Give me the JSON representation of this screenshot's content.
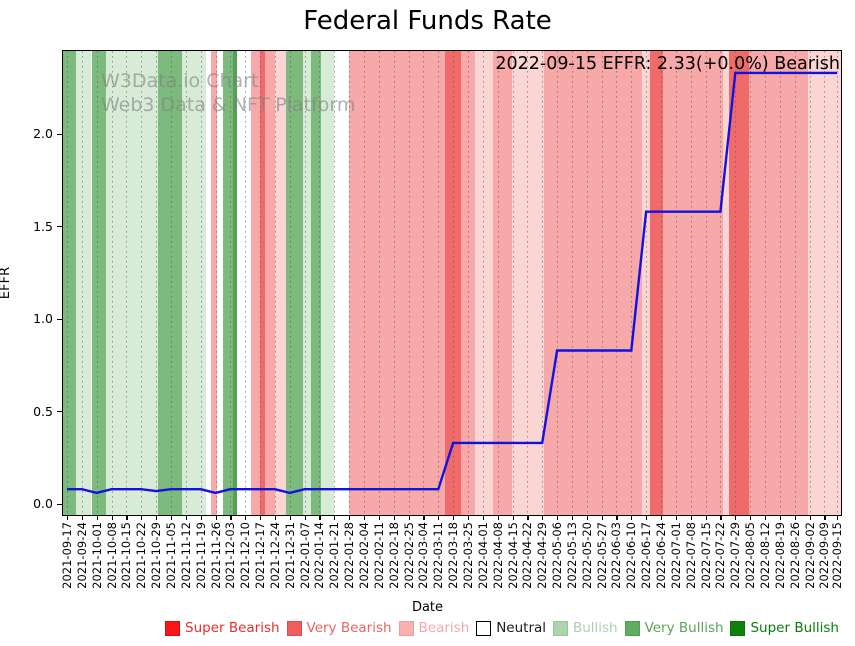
{
  "title": "Federal Funds Rate",
  "watermark": {
    "line1": "W3Data.io Chart",
    "line2": "Web3 Data & NFT Platform"
  },
  "annotation": "2022-09-15 EFFR: 2.33(+0.0%) Bearish",
  "axes": {
    "xlabel": "Date",
    "ylabel": "EFFR",
    "yticks": [
      "0.0",
      "0.5",
      "1.0",
      "1.5",
      "2.0"
    ],
    "ytick_values": [
      0.0,
      0.5,
      1.0,
      1.5,
      2.0
    ]
  },
  "chart_data": {
    "type": "line",
    "title": "Federal Funds Rate",
    "xlabel": "Date",
    "ylabel": "EFFR",
    "ylim": [
      -0.05,
      2.45
    ],
    "grid": "vertical-dotted",
    "legend_position": "bottom",
    "x": [
      "2021-09-17",
      "2021-09-24",
      "2021-10-01",
      "2021-10-08",
      "2021-10-15",
      "2021-10-22",
      "2021-10-29",
      "2021-11-05",
      "2021-11-12",
      "2021-11-19",
      "2021-11-26",
      "2021-12-03",
      "2021-12-10",
      "2021-12-17",
      "2021-12-24",
      "2021-12-31",
      "2022-01-07",
      "2022-01-14",
      "2022-01-21",
      "2022-01-28",
      "2022-02-04",
      "2022-02-11",
      "2022-02-18",
      "2022-02-25",
      "2022-03-04",
      "2022-03-11",
      "2022-03-18",
      "2022-03-25",
      "2022-04-01",
      "2022-04-08",
      "2022-04-15",
      "2022-04-22",
      "2022-04-29",
      "2022-05-06",
      "2022-05-13",
      "2022-05-20",
      "2022-05-27",
      "2022-06-03",
      "2022-06-10",
      "2022-06-17",
      "2022-06-24",
      "2022-07-01",
      "2022-07-08",
      "2022-07-15",
      "2022-07-22",
      "2022-07-29",
      "2022-08-05",
      "2022-08-12",
      "2022-08-19",
      "2022-08-26",
      "2022-09-02",
      "2022-09-09",
      "2022-09-15"
    ],
    "series": [
      {
        "name": "EFFR",
        "color": "#1212e0",
        "values": [
          0.08,
          0.08,
          0.06,
          0.08,
          0.08,
          0.08,
          0.07,
          0.08,
          0.08,
          0.08,
          0.06,
          0.08,
          0.08,
          0.08,
          0.08,
          0.06,
          0.08,
          0.08,
          0.08,
          0.08,
          0.08,
          0.08,
          0.08,
          0.08,
          0.08,
          0.08,
          0.33,
          0.33,
          0.33,
          0.33,
          0.33,
          0.33,
          0.33,
          0.83,
          0.83,
          0.83,
          0.83,
          0.83,
          0.83,
          1.58,
          1.58,
          1.58,
          1.58,
          1.58,
          1.58,
          2.33,
          2.33,
          2.33,
          2.33,
          2.33,
          2.33,
          2.33,
          2.33
        ]
      }
    ],
    "band_colors": {
      "super_bearish": "#ff1414",
      "very_bearish": "#f06a6a",
      "bearish": "#f7a8a8",
      "bearish_light": "#fbd4d4",
      "neutral": "#ffffff",
      "bullish": "#d7ebd7",
      "very_bullish": "#7dba7d",
      "super_bullish": "#55a155"
    },
    "bands": [
      {
        "from": -0.29,
        "to": 0.63,
        "sentiment": "very_bullish"
      },
      {
        "from": 0.63,
        "to": 1.65,
        "sentiment": "bullish"
      },
      {
        "from": 1.65,
        "to": 2.63,
        "sentiment": "very_bullish"
      },
      {
        "from": 2.63,
        "to": 6.12,
        "sentiment": "bullish"
      },
      {
        "from": 6.12,
        "to": 7.76,
        "sentiment": "very_bullish"
      },
      {
        "from": 7.76,
        "to": 9.35,
        "sentiment": "bullish"
      },
      {
        "from": 9.35,
        "to": 9.72,
        "sentiment": "neutral"
      },
      {
        "from": 9.72,
        "to": 10.12,
        "sentiment": "bearish"
      },
      {
        "from": 10.12,
        "to": 10.48,
        "sentiment": "neutral"
      },
      {
        "from": 10.48,
        "to": 11.15,
        "sentiment": "very_bullish"
      },
      {
        "from": 11.15,
        "to": 11.45,
        "sentiment": "super_bullish"
      },
      {
        "from": 11.45,
        "to": 12.38,
        "sentiment": "neutral"
      },
      {
        "from": 12.38,
        "to": 13.0,
        "sentiment": "bearish"
      },
      {
        "from": 13.0,
        "to": 13.35,
        "sentiment": "very_bearish"
      },
      {
        "from": 13.35,
        "to": 14.0,
        "sentiment": "bearish"
      },
      {
        "from": 14.0,
        "to": 14.76,
        "sentiment": "bearish_light"
      },
      {
        "from": 14.76,
        "to": 15.9,
        "sentiment": "very_bullish"
      },
      {
        "from": 15.9,
        "to": 16.42,
        "sentiment": "bullish"
      },
      {
        "from": 16.42,
        "to": 17.1,
        "sentiment": "very_bullish"
      },
      {
        "from": 17.1,
        "to": 17.95,
        "sentiment": "bullish"
      },
      {
        "from": 17.95,
        "to": 18.98,
        "sentiment": "neutral"
      },
      {
        "from": 18.98,
        "to": 25.45,
        "sentiment": "bearish"
      },
      {
        "from": 25.45,
        "to": 26.5,
        "sentiment": "very_bearish"
      },
      {
        "from": 26.5,
        "to": 27.5,
        "sentiment": "bearish"
      },
      {
        "from": 27.5,
        "to": 28.7,
        "sentiment": "bearish_light"
      },
      {
        "from": 28.7,
        "to": 29.95,
        "sentiment": "bearish"
      },
      {
        "from": 29.95,
        "to": 32.1,
        "sentiment": "bearish_light"
      },
      {
        "from": 32.1,
        "to": 38.7,
        "sentiment": "bearish"
      },
      {
        "from": 38.7,
        "to": 39.25,
        "sentiment": "bearish_light"
      },
      {
        "from": 39.25,
        "to": 40.15,
        "sentiment": "very_bearish"
      },
      {
        "from": 40.15,
        "to": 44.15,
        "sentiment": "bearish"
      },
      {
        "from": 44.15,
        "to": 44.6,
        "sentiment": "bearish_light"
      },
      {
        "from": 44.6,
        "to": 45.9,
        "sentiment": "very_bearish"
      },
      {
        "from": 45.9,
        "to": 49.9,
        "sentiment": "bearish"
      },
      {
        "from": 49.9,
        "to": 52.95,
        "sentiment": "bearish_light"
      }
    ]
  },
  "legend": [
    {
      "label": "Super Bearish",
      "swatch": "#fd1515",
      "text_color": "#e62e2e",
      "border": "#d01010"
    },
    {
      "label": "Very Bearish",
      "swatch": "#f15d5d",
      "text_color": "#ef6161",
      "border": "#d94f4f"
    },
    {
      "label": "Bearish",
      "swatch": "#f9b0b0",
      "text_color": "#f4a9a9",
      "border": "#e9a0a0"
    },
    {
      "label": "Neutral",
      "swatch": "#ffffff",
      "text_color": "#1a1a1a",
      "border": "#000000"
    },
    {
      "label": "Bullish",
      "swatch": "#aed4ae",
      "text_color": "#abd2ab",
      "border": "#9cc49c"
    },
    {
      "label": "Very Bullish",
      "swatch": "#5fae5f",
      "text_color": "#55a755",
      "border": "#519d51"
    },
    {
      "label": "Super Bullish",
      "swatch": "#0c810c",
      "text_color": "#0b7c0b",
      "border": "#0a6f0a"
    }
  ]
}
